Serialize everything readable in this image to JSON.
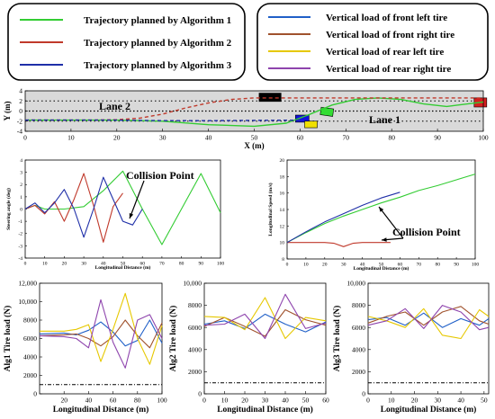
{
  "legends": {
    "left": [
      {
        "label": "Trajectory planned by Algorithm 1",
        "color": "#33cc33"
      },
      {
        "label": "Trajectory planned by Algorithm 2",
        "color": "#c0392b"
      },
      {
        "label": "Trajectory planned by Algorithm 3",
        "color": "#1f2fa8"
      }
    ],
    "right": [
      {
        "label": "Vertical load of front left tire",
        "color": "#2060c8"
      },
      {
        "label": "Vertical load of front right tire",
        "color": "#a0522d"
      },
      {
        "label": "Vertical load of rear left tire",
        "color": "#e6c800"
      },
      {
        "label": "Vertical load of rear right tire",
        "color": "#8e44ad"
      }
    ]
  },
  "chart_data": [
    {
      "id": "trajectory",
      "type": "line",
      "xlabel": "X (m)",
      "ylabel": "Y (m)",
      "xlim": [
        0,
        100
      ],
      "ylim": [
        -4,
        4
      ],
      "xticks": [
        0,
        10,
        20,
        30,
        40,
        50,
        60,
        70,
        80,
        90,
        100
      ],
      "yticks": [
        -4,
        -2,
        0,
        2,
        4
      ],
      "annotations": [
        "Lane 2",
        "Lane 1"
      ],
      "series": [
        {
          "color": "#33cc33",
          "style": "solid",
          "x": [
            0,
            20,
            30,
            40,
            50,
            57,
            62,
            67,
            72,
            77,
            82,
            87,
            92,
            100
          ],
          "y": [
            -1.8,
            -1.8,
            -2,
            -2.7,
            -3,
            -2.4,
            -0.7,
            1.2,
            2.3,
            2.6,
            2.3,
            1.4,
            0.9,
            1.8
          ]
        },
        {
          "color": "#c0392b",
          "style": "dashed",
          "x": [
            0,
            15,
            20,
            25,
            30,
            35,
            40,
            45,
            50,
            55,
            60,
            100
          ],
          "y": [
            -1.8,
            -1.8,
            -1.7,
            -1.4,
            -0.6,
            0.6,
            1.6,
            2.3,
            2.6,
            2.6,
            2.6,
            2.6
          ]
        },
        {
          "color": "#1f2fa8",
          "style": "dashed",
          "x": [
            0,
            20,
            30,
            40,
            50,
            60
          ],
          "y": [
            -1.8,
            -1.8,
            -1.9,
            -1.9,
            -1.85,
            -1.8
          ]
        }
      ]
    },
    {
      "id": "steering",
      "type": "line",
      "xlabel": "Longitudinal Distance (m)",
      "ylabel": "Steering angle (deg)",
      "xlim": [
        0,
        100
      ],
      "ylim": [
        -4,
        4
      ],
      "xticks": [
        0,
        10,
        20,
        30,
        40,
        50,
        60,
        70,
        80,
        90,
        100
      ],
      "yticks": [
        -4,
        -3,
        -2,
        -1,
        0,
        1,
        2,
        3,
        4
      ],
      "annotations": [
        "Collision Point"
      ],
      "series": [
        {
          "color": "#33cc33",
          "x": [
            0,
            5,
            10,
            20,
            30,
            40,
            50,
            60,
            70,
            80,
            90,
            100
          ],
          "y": [
            0,
            0.3,
            0,
            0,
            0.2,
            1.5,
            3.1,
            0,
            -2.9,
            0,
            2.9,
            -0.3
          ]
        },
        {
          "color": "#c0392b",
          "x": [
            0,
            5,
            10,
            15,
            20,
            25,
            30,
            35,
            40,
            45,
            50
          ],
          "y": [
            0,
            0.3,
            -0.4,
            0.6,
            -1,
            0.8,
            2.9,
            0.3,
            -2.7,
            0.2,
            1.3
          ]
        },
        {
          "color": "#1f2fa8",
          "x": [
            0,
            5,
            10,
            15,
            20,
            25,
            30,
            35,
            40,
            45,
            50,
            55,
            60
          ],
          "y": [
            0,
            0.5,
            -0.3,
            0.5,
            1.6,
            0,
            -2.3,
            0,
            2.6,
            0.8,
            -1,
            -1.3,
            0
          ]
        }
      ]
    },
    {
      "id": "speed",
      "type": "line",
      "xlabel": "Longitudinal Distance (m)",
      "ylabel": "Longitudinal Speed (m/s)",
      "xlim": [
        0,
        100
      ],
      "ylim": [
        8,
        20
      ],
      "xticks": [
        0,
        10,
        20,
        30,
        40,
        50,
        60,
        70,
        80,
        90,
        100
      ],
      "yticks": [
        8,
        10,
        12,
        14,
        16,
        18,
        20
      ],
      "annotations": [
        "Collision Point"
      ],
      "series": [
        {
          "color": "#33cc33",
          "x": [
            0,
            10,
            20,
            30,
            40,
            50,
            60,
            70,
            80,
            90,
            100
          ],
          "y": [
            10,
            11.2,
            12.3,
            13.2,
            14,
            14.8,
            15.5,
            16.3,
            16.9,
            17.6,
            18.3
          ]
        },
        {
          "color": "#c0392b",
          "x": [
            0,
            10,
            20,
            25,
            30,
            35,
            40,
            50,
            55
          ],
          "y": [
            10,
            10,
            10,
            9.9,
            9.5,
            9.9,
            10,
            10,
            10
          ]
        },
        {
          "color": "#1f2fa8",
          "x": [
            0,
            10,
            20,
            30,
            40,
            50,
            60
          ],
          "y": [
            10,
            11.3,
            12.5,
            13.5,
            14.5,
            15.4,
            16.1
          ]
        }
      ]
    },
    {
      "id": "alg1",
      "type": "line",
      "xlabel": "Longitudinal Distance (m)",
      "ylabel": "Alg1 Tire load (N)",
      "xlim": [
        0,
        100
      ],
      "ylim": [
        0,
        12000
      ],
      "xticks": [
        20,
        40,
        60,
        80,
        100
      ],
      "yticks": [
        0,
        2000,
        4000,
        6000,
        8000,
        10000,
        12000
      ],
      "yticklabels": [
        "0",
        "2000",
        "4000",
        "6000",
        "8000",
        "10,000",
        "12,000"
      ],
      "reference_line": 1000,
      "series": [
        {
          "color": "#2060c8",
          "x": [
            0,
            20,
            30,
            40,
            50,
            60,
            70,
            80,
            90,
            100
          ],
          "y": [
            6500,
            6600,
            6400,
            6900,
            7800,
            6700,
            5200,
            5800,
            8000,
            5500
          ]
        },
        {
          "color": "#a0522d",
          "x": [
            0,
            20,
            30,
            40,
            50,
            60,
            70,
            80,
            90,
            100
          ],
          "y": [
            6300,
            6400,
            6500,
            6000,
            5200,
            6200,
            8000,
            6300,
            5000,
            7700
          ]
        },
        {
          "color": "#e6c800",
          "x": [
            0,
            20,
            30,
            40,
            50,
            60,
            70,
            80,
            90,
            100
          ],
          "y": [
            6800,
            6800,
            7000,
            7500,
            3500,
            7000,
            10900,
            6000,
            3200,
            7400
          ]
        },
        {
          "color": "#8e44ad",
          "x": [
            0,
            20,
            30,
            40,
            50,
            60,
            70,
            80,
            90,
            100
          ],
          "y": [
            6300,
            6200,
            6000,
            5000,
            10200,
            5600,
            2800,
            8000,
            8600,
            6000
          ]
        }
      ]
    },
    {
      "id": "alg2",
      "type": "line",
      "xlabel": "Longitudinal Distance (m)",
      "ylabel": "Alg2 Tire load (N)",
      "xlim": [
        0,
        60
      ],
      "ylim": [
        0,
        10000
      ],
      "xticks": [
        0,
        10,
        20,
        30,
        40,
        50,
        60
      ],
      "yticks": [
        0,
        2000,
        4000,
        6000,
        8000,
        10000
      ],
      "yticklabels": [
        "0",
        "2000",
        "4000",
        "6000",
        "8000",
        "10,000"
      ],
      "reference_line": 1000,
      "series": [
        {
          "color": "#2060c8",
          "x": [
            0,
            10,
            20,
            30,
            40,
            50,
            60
          ],
          "y": [
            6300,
            6600,
            5900,
            7200,
            6300,
            5600,
            6500
          ]
        },
        {
          "color": "#a0522d",
          "x": [
            0,
            10,
            20,
            30,
            40,
            50,
            60
          ],
          "y": [
            6100,
            6900,
            6100,
            5200,
            7600,
            6700,
            6200
          ]
        },
        {
          "color": "#e6c800",
          "x": [
            0,
            10,
            20,
            30,
            40,
            50,
            60
          ],
          "y": [
            7000,
            6900,
            5800,
            8700,
            5000,
            6900,
            6600
          ]
        },
        {
          "color": "#8e44ad",
          "x": [
            0,
            10,
            20,
            30,
            40,
            50,
            60
          ],
          "y": [
            6200,
            6300,
            7200,
            5000,
            9000,
            5900,
            6400
          ]
        }
      ]
    },
    {
      "id": "alg3",
      "type": "line",
      "xlabel": "Longitudinal Distance (m)",
      "ylabel": "Alg3 Tire load (N)",
      "xlim": [
        0,
        52
      ],
      "ylim": [
        0,
        10000
      ],
      "xticks": [
        0,
        10,
        20,
        30,
        40,
        50
      ],
      "yticks": [
        0,
        2000,
        4000,
        6000,
        8000,
        10000
      ],
      "yticklabels": [
        "0",
        "2000",
        "4000",
        "6000",
        "8000",
        "10,000"
      ],
      "reference_line": 1000,
      "series": [
        {
          "color": "#2060c8",
          "x": [
            0,
            8,
            16,
            24,
            32,
            40,
            48,
            52
          ],
          "y": [
            6700,
            6900,
            6200,
            7300,
            6000,
            6800,
            6200,
            6800
          ]
        },
        {
          "color": "#a0522d",
          "x": [
            0,
            8,
            16,
            24,
            32,
            40,
            48,
            52
          ],
          "y": [
            6400,
            7000,
            7400,
            6200,
            7400,
            7900,
            6600,
            6300
          ]
        },
        {
          "color": "#e6c800",
          "x": [
            0,
            8,
            16,
            24,
            32,
            40,
            48,
            52
          ],
          "y": [
            7000,
            6600,
            6000,
            7700,
            5300,
            5000,
            7600,
            7000
          ]
        },
        {
          "color": "#8e44ad",
          "x": [
            0,
            8,
            16,
            24,
            32,
            40,
            48,
            52
          ],
          "y": [
            6200,
            6600,
            7700,
            5900,
            8000,
            7400,
            5800,
            6000
          ]
        }
      ]
    }
  ]
}
